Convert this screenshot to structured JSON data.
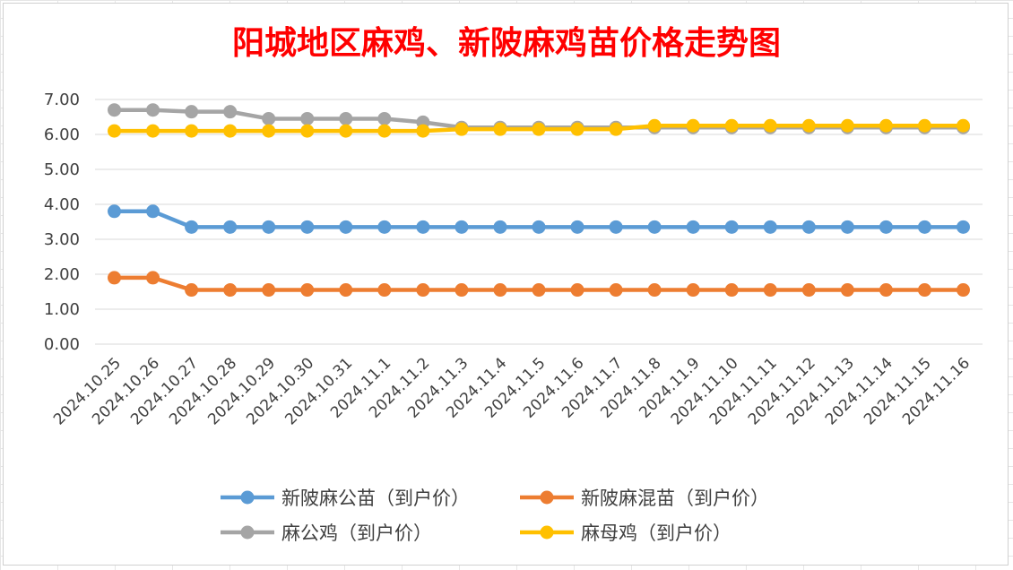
{
  "chart_data": {
    "type": "line",
    "title": "阳城地区麻鸡、新陂麻鸡苗价格走势图",
    "xlabel": "",
    "ylabel": "",
    "ylim": [
      0,
      7
    ],
    "y_ticks": [
      "0.00",
      "1.00",
      "2.00",
      "3.00",
      "4.00",
      "5.00",
      "6.00",
      "7.00"
    ],
    "grid": true,
    "legend_position": "bottom",
    "categories": [
      "2024.10.25",
      "2024.10.26",
      "2024.10.27",
      "2024.10.28",
      "2024.10.29",
      "2024.10.30",
      "2024.10.31",
      "2024.11.1",
      "2024.11.2",
      "2024.11.3",
      "2024.11.4",
      "2024.11.5",
      "2024.11.6",
      "2024.11.7",
      "2024.11.8",
      "2024.11.9",
      "2024.11.10",
      "2024.11.11",
      "2024.11.12",
      "2024.11.13",
      "2024.11.14",
      "2024.11.15",
      "2024.11.16"
    ],
    "series": [
      {
        "name": "新陂麻公苗（到户价）",
        "color": "#5b9bd5",
        "values": [
          3.8,
          3.8,
          3.35,
          3.35,
          3.35,
          3.35,
          3.35,
          3.35,
          3.35,
          3.35,
          3.35,
          3.35,
          3.35,
          3.35,
          3.35,
          3.35,
          3.35,
          3.35,
          3.35,
          3.35,
          3.35,
          3.35,
          3.35
        ]
      },
      {
        "name": "新陂麻混苗（到户价）",
        "color": "#ed7d31",
        "values": [
          1.9,
          1.9,
          1.55,
          1.55,
          1.55,
          1.55,
          1.55,
          1.55,
          1.55,
          1.55,
          1.55,
          1.55,
          1.55,
          1.55,
          1.55,
          1.55,
          1.55,
          1.55,
          1.55,
          1.55,
          1.55,
          1.55,
          1.55
        ]
      },
      {
        "name": "麻公鸡（到户价）",
        "color": "#a5a5a5",
        "values": [
          6.7,
          6.7,
          6.65,
          6.65,
          6.45,
          6.45,
          6.45,
          6.45,
          6.35,
          6.2,
          6.2,
          6.2,
          6.2,
          6.2,
          6.2,
          6.2,
          6.2,
          6.2,
          6.2,
          6.2,
          6.2,
          6.2,
          6.2
        ]
      },
      {
        "name": "麻母鸡（到户价）",
        "color": "#ffc000",
        "values": [
          6.1,
          6.1,
          6.1,
          6.1,
          6.1,
          6.1,
          6.1,
          6.1,
          6.1,
          6.15,
          6.15,
          6.15,
          6.15,
          6.15,
          6.25,
          6.25,
          6.25,
          6.25,
          6.25,
          6.25,
          6.25,
          6.25,
          6.25
        ]
      }
    ]
  }
}
